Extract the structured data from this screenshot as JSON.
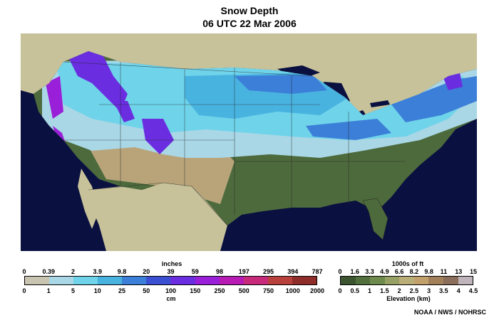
{
  "title": "Snow Depth",
  "subtitle": "06 UTC 22 Mar 2006",
  "credit": "NOAA / NWS / NOHRSC",
  "colors": {
    "ocean": "#0a1040",
    "land_outside": "#c7c29a",
    "lowland": "#4d6a3c",
    "border_lines": "#222222"
  },
  "snow_legend": {
    "top_unit": "inches",
    "bottom_unit": "cm",
    "inches_ticks": [
      "0",
      "0.39",
      "2",
      "3.9",
      "9.8",
      "20",
      "39",
      "59",
      "98",
      "197",
      "295",
      "394",
      "787"
    ],
    "cm_ticks": [
      "0",
      "1",
      "5",
      "10",
      "25",
      "50",
      "100",
      "150",
      "250",
      "500",
      "750",
      "1000",
      "2000"
    ],
    "colors": [
      "#c9c4b2",
      "#a9d7e6",
      "#6fd3ea",
      "#49b3e0",
      "#3c7fd8",
      "#3a4fd2",
      "#6a2ee0",
      "#9a1fd8",
      "#b81bb4",
      "#c72a7a",
      "#b8413c",
      "#8f2d2a"
    ]
  },
  "elevation_legend": {
    "top_unit": "1000s of ft",
    "bottom_unit": "Elevation (km)",
    "ft_ticks": [
      "0",
      "1.6",
      "3.3",
      "4.9",
      "6.6",
      "8.2",
      "9.8",
      "11",
      "13",
      "15"
    ],
    "km_ticks": [
      "0",
      "0.5",
      "1",
      "1.5",
      "2",
      "2.5",
      "3",
      "3.5",
      "4",
      "4.5"
    ],
    "colors": [
      "#3c5530",
      "#52703d",
      "#6f8a4d",
      "#96a064",
      "#b9ae78",
      "#c2a06c",
      "#a2805a",
      "#8a6d5a",
      "#bfb4ba"
    ]
  }
}
